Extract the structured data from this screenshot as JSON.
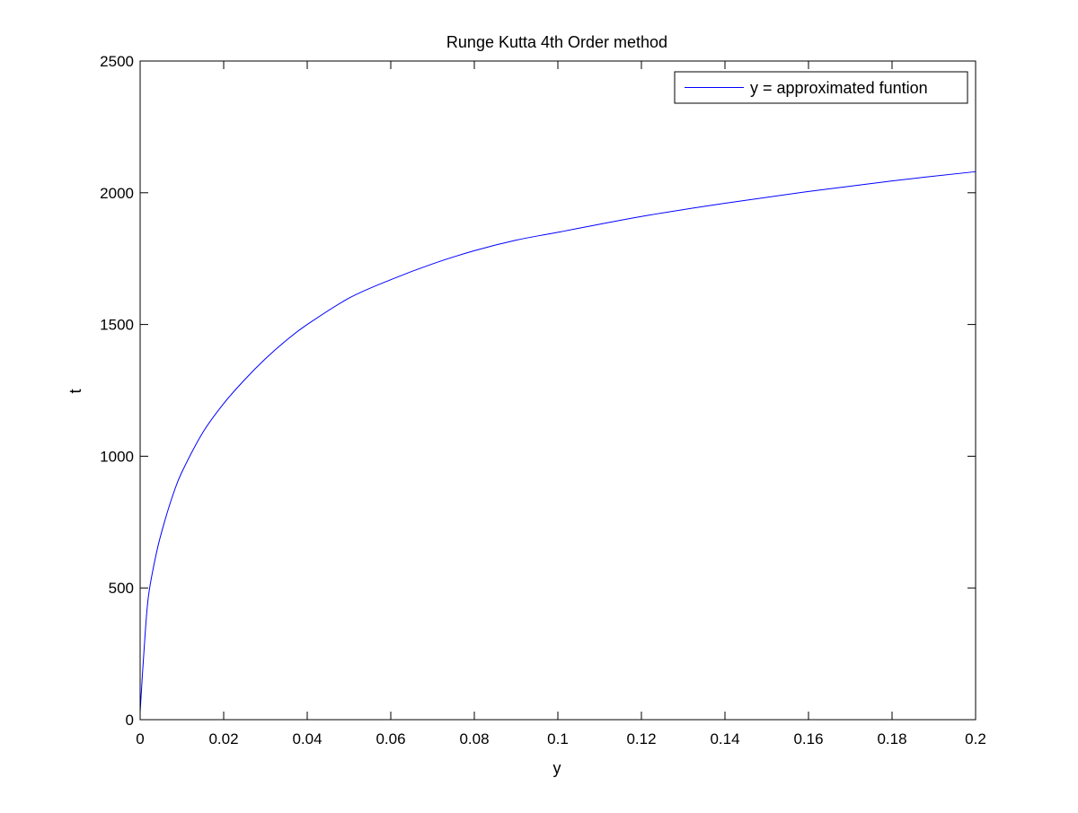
{
  "chart_data": {
    "type": "line",
    "title": "Runge Kutta 4th Order method",
    "xlabel": "y",
    "ylabel": "t",
    "xlim": [
      0,
      0.2
    ],
    "ylim": [
      0,
      2500
    ],
    "xticks": [
      0,
      0.02,
      0.04,
      0.06,
      0.08,
      0.1,
      0.12,
      0.14,
      0.16,
      0.18,
      0.2
    ],
    "xtick_labels": [
      "0",
      "0.02",
      "0.04",
      "0.06",
      "0.08",
      "0.1",
      "0.12",
      "0.14",
      "0.16",
      "0.18",
      "0.2"
    ],
    "yticks": [
      0,
      500,
      1000,
      1500,
      2000,
      2500
    ],
    "ytick_labels": [
      "0",
      "500",
      "1000",
      "1500",
      "2000",
      "2500"
    ],
    "grid": false,
    "legend_position": "top-right",
    "series": [
      {
        "name": "y = approximated funtion",
        "color": "#0000ff",
        "points": [
          [
            0,
            30
          ],
          [
            0.001,
            280
          ],
          [
            0.002,
            470
          ],
          [
            0.004,
            640
          ],
          [
            0.006,
            760
          ],
          [
            0.008,
            860
          ],
          [
            0.01,
            940
          ],
          [
            0.015,
            1090
          ],
          [
            0.02,
            1200
          ],
          [
            0.025,
            1290
          ],
          [
            0.03,
            1370
          ],
          [
            0.035,
            1440
          ],
          [
            0.04,
            1500
          ],
          [
            0.05,
            1600
          ],
          [
            0.06,
            1670
          ],
          [
            0.07,
            1730
          ],
          [
            0.08,
            1780
          ],
          [
            0.09,
            1820
          ],
          [
            0.1,
            1850
          ],
          [
            0.12,
            1910
          ],
          [
            0.14,
            1960
          ],
          [
            0.16,
            2005
          ],
          [
            0.18,
            2045
          ],
          [
            0.2,
            2080
          ]
        ]
      }
    ]
  }
}
